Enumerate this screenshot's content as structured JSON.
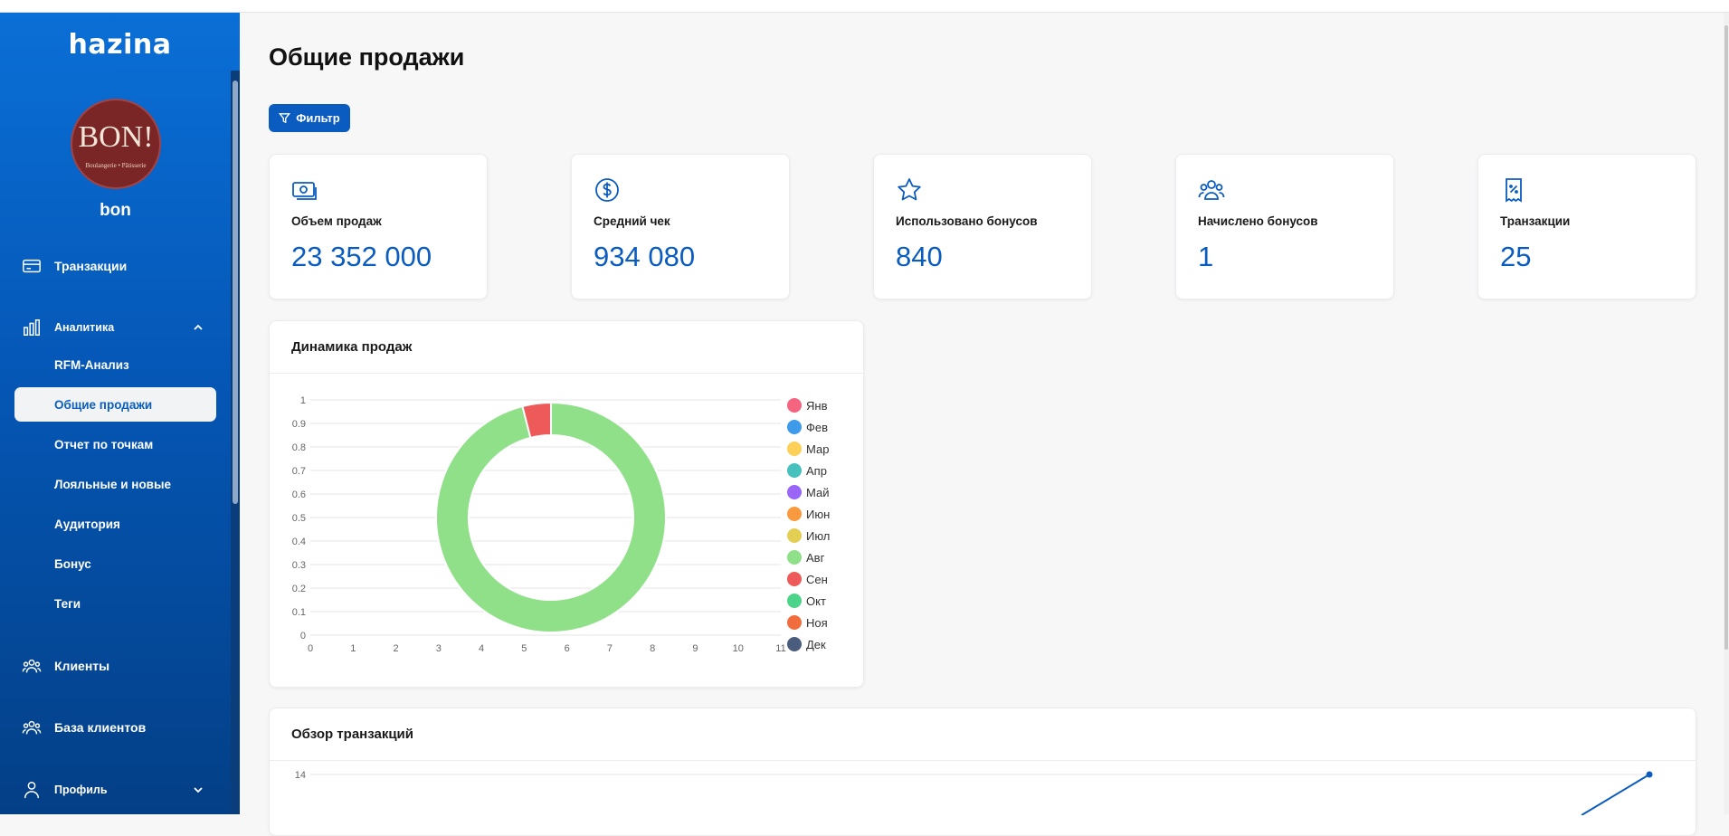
{
  "sidebar": {
    "logo": "hazina",
    "avatar": {
      "brand": "BON!",
      "tagline": "Boulangerie • Pâtisserie"
    },
    "username": "bon",
    "items": [
      {
        "label": "Транзакции",
        "icon": "credit-card-icon"
      },
      {
        "label": "Аналитика",
        "icon": "bar-chart-icon",
        "expanded": true
      },
      {
        "label": "Клиенты",
        "icon": "users-icon"
      },
      {
        "label": "База клиентов",
        "icon": "users-icon"
      },
      {
        "label": "Профиль",
        "icon": "user-icon",
        "expanded": false
      }
    ],
    "analytics_sub": [
      "RFM-Анализ",
      "Общие продажи",
      "Отчет по точкам",
      "Лояльные и новые",
      "Аудитория",
      "Бонус",
      "Теги"
    ],
    "active_sub": "Общие продажи"
  },
  "main": {
    "title": "Общие продажи",
    "filter_label": "Фильтр",
    "stats": [
      {
        "label": "Объем продаж",
        "value": "23 352 000",
        "icon": "money-icon"
      },
      {
        "label": "Средний чек",
        "value": "934 080",
        "icon": "dollar-circle-icon"
      },
      {
        "label": "Использовано бонусов",
        "value": "840",
        "icon": "star-icon"
      },
      {
        "label": "Начислено бонусов",
        "value": "1",
        "icon": "group-icon"
      },
      {
        "label": "Транзакции",
        "value": "25",
        "icon": "receipt-percent-icon"
      }
    ],
    "sales_panel_title": "Динамика продаж",
    "transactions_panel_title": "Обзор транзакций"
  },
  "chart_data": [
    {
      "type": "pie",
      "title": "Динамика продаж",
      "categories": [
        "Янв",
        "Фев",
        "Мар",
        "Апр",
        "Май",
        "Июн",
        "Июл",
        "Авг",
        "Сен",
        "Окт",
        "Ноя",
        "Дек"
      ],
      "colors": [
        "#f5647f",
        "#3d9be9",
        "#fbcf58",
        "#47c1be",
        "#9a66f8",
        "#fa9a3f",
        "#e3cf54",
        "#90e08a",
        "#ee5a5a",
        "#4cd58a",
        "#f26d3d",
        "#4b5d7c"
      ],
      "values": [
        0,
        0,
        0,
        0,
        0,
        0,
        0,
        0.96,
        0.04,
        0,
        0,
        0
      ],
      "x_ticks": [
        "0",
        "1",
        "2",
        "3",
        "4",
        "5",
        "6",
        "7",
        "8",
        "9",
        "10",
        "11"
      ],
      "y_ticks": [
        "0",
        "0.1",
        "0.2",
        "0.3",
        "0.4",
        "0.5",
        "0.6",
        "0.7",
        "0.8",
        "0.9",
        "1"
      ],
      "legend": "right",
      "grid": true
    },
    {
      "type": "line",
      "title": "Обзор транзакций",
      "y_tick_visible": [
        "14"
      ],
      "note": "partially visible"
    }
  ]
}
